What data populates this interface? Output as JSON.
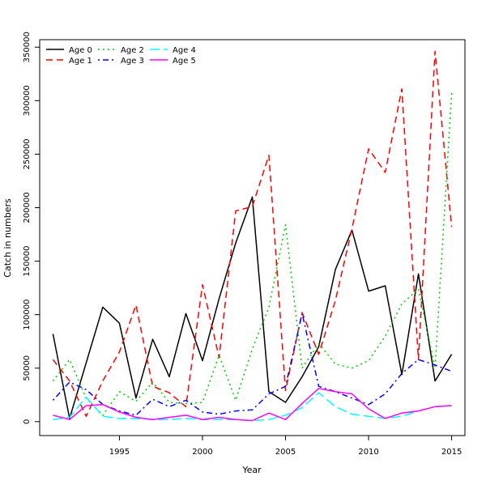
{
  "chart_data": {
    "type": "line",
    "title": "",
    "xlabel": "Year",
    "ylabel": "Catch in numbers",
    "xlim": [
      1990.2,
      2015.8
    ],
    "ylim": [
      -13000,
      357000
    ],
    "x_ticks": [
      1995,
      2000,
      2005,
      2010,
      2015
    ],
    "y_ticks": [
      0,
      50000,
      100000,
      150000,
      200000,
      250000,
      300000,
      350000
    ],
    "legend_position": "top-left",
    "x": [
      1991,
      1992,
      1993,
      1994,
      1995,
      1996,
      1997,
      1998,
      1999,
      2000,
      2001,
      2002,
      2003,
      2004,
      2005,
      2006,
      2007,
      2008,
      2009,
      2010,
      2011,
      2012,
      2013,
      2014,
      2015
    ],
    "series": [
      {
        "name": "Age 0",
        "color": "#000000",
        "dash": "solid",
        "values": [
          82000,
          3000,
          55000,
          107000,
          92000,
          22000,
          77000,
          42000,
          101000,
          57000,
          115000,
          167000,
          210000,
          28000,
          18000,
          42000,
          70000,
          142000,
          179000,
          122000,
          127000,
          44000,
          138000,
          38000,
          63000
        ]
      },
      {
        "name": "Age 1",
        "color": "#ff0000",
        "dash": "dashed",
        "values": [
          58000,
          38000,
          5000,
          38000,
          65000,
          109000,
          33000,
          27000,
          14000,
          128000,
          60000,
          197000,
          201000,
          249000,
          29000,
          102000,
          63000,
          113000,
          180000,
          255000,
          233000,
          311000,
          58000,
          346000,
          182000
        ]
      },
      {
        "name": "Age 2",
        "color": "#00cd00",
        "dash": "dotted",
        "values": [
          38000,
          58000,
          22000,
          6000,
          28000,
          19000,
          37000,
          18000,
          17000,
          18000,
          62000,
          20000,
          68000,
          107000,
          184000,
          50000,
          73000,
          54000,
          50000,
          57000,
          80000,
          110000,
          124000,
          50000,
          307000
        ]
      },
      {
        "name": "Age 3",
        "color": "#0000ff",
        "dash": "dashdot",
        "values": [
          20000,
          37000,
          30000,
          16000,
          10000,
          6000,
          21000,
          14000,
          20000,
          9000,
          7000,
          10000,
          11000,
          26000,
          33000,
          101000,
          33000,
          28000,
          22000,
          16000,
          26000,
          45000,
          58000,
          53000,
          47000
        ]
      },
      {
        "name": "Age 4",
        "color": "#00ffff",
        "dash": "longdash",
        "values": [
          2000,
          4000,
          23000,
          5000,
          3000,
          3000,
          2000,
          2000,
          3000,
          2000,
          2000,
          2000,
          1000,
          2000,
          6000,
          13000,
          27000,
          14000,
          7000,
          5000,
          3000,
          5000,
          10000,
          14000,
          15000
        ]
      },
      {
        "name": "Age 5",
        "color": "#ff00ff",
        "dash": "solid",
        "values": [
          6000,
          2000,
          15000,
          16000,
          9000,
          4000,
          2000,
          4000,
          6000,
          2000,
          4000,
          2000,
          1000,
          8000,
          2000,
          17000,
          31000,
          28000,
          26000,
          12000,
          3000,
          8000,
          10000,
          14000,
          15000
        ]
      }
    ]
  }
}
